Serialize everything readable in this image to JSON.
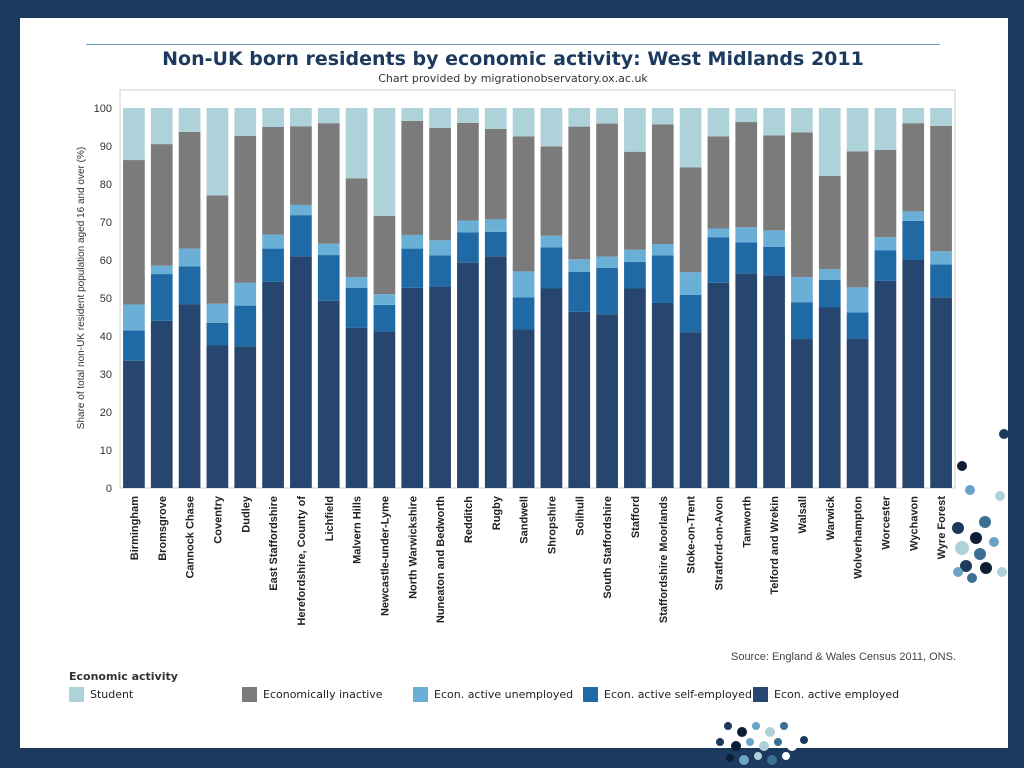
{
  "header": {
    "title": "Non-UK born residents by economic activity: West Midlands 2011",
    "subtitle": "Chart provided by migrationobservatory.ox.ac.uk"
  },
  "footer": {
    "source": "Source: England & Wales Census 2011, ONS.",
    "legend_title": "Economic activity"
  },
  "colors": {
    "background": "#1c3a5e",
    "student": "#aed2da",
    "inactive": "#7b7b7b",
    "unemployed": "#6aafd6",
    "self_employed": "#1f6aa5",
    "employed": "#26466f"
  },
  "chart_data": {
    "type": "bar",
    "stacked": true,
    "title": "Non-UK born residents by economic activity: West Midlands 2011",
    "subtitle": "Chart provided by migrationobservatory.ox.ac.uk",
    "ylabel": "Share of total non-UK resident population aged 16 and over (%)",
    "xlabel": "",
    "ylim": [
      0,
      100
    ],
    "yticks": [
      0,
      10,
      20,
      30,
      40,
      50,
      60,
      70,
      80,
      90,
      100
    ],
    "grid": false,
    "legend_position": "bottom",
    "categories": [
      "Birmingham",
      "Bromsgrove",
      "Cannock Chase",
      "Coventry",
      "Dudley",
      "East Staffordshire",
      "Herefordshire, County of",
      "Lichfield",
      "Malvern Hills",
      "Newcastle-under-Lyme",
      "North Warwickshire",
      "Nuneaton and Bedworth",
      "Redditch",
      "Rugby",
      "Sandwell",
      "Shropshire",
      "Solihull",
      "South Staffordshire",
      "Stafford",
      "Staffordshire Moorlands",
      "Stoke-on-Trent",
      "Stratford-on-Avon",
      "Tamworth",
      "Telford and Wrekin",
      "Walsall",
      "Warwick",
      "Wolverhampton",
      "Worcester",
      "Wychavon",
      "Wyre Forest"
    ],
    "series": [
      {
        "name": "Econ. active employed",
        "color_key": "employed",
        "values": [
          33.5,
          44,
          48.3,
          37.5,
          37.3,
          54.3,
          61,
          49.3,
          42.2,
          41.2,
          52.7,
          53,
          59.3,
          61,
          41.7,
          52.5,
          46.4,
          45.7,
          52.5,
          48.7,
          41,
          54,
          56.5,
          55.9,
          39.2,
          47.5,
          39.4,
          54.5,
          60,
          50.2
        ]
      },
      {
        "name": "Econ. active self-employed",
        "color_key": "self_employed",
        "values": [
          8,
          12.3,
          10,
          6,
          10.7,
          8.7,
          10.8,
          12,
          10.5,
          7,
          10.3,
          8.2,
          8,
          6.4,
          8.5,
          10.8,
          10.5,
          12.2,
          7,
          12.5,
          9.8,
          12,
          8.1,
          7.6,
          9.7,
          7.3,
          6.8,
          8,
          10.3,
          8.6
        ]
      },
      {
        "name": "Econ. active unemployed",
        "color_key": "unemployed",
        "values": [
          6.8,
          2.2,
          4.7,
          5,
          6,
          3.7,
          2.7,
          3,
          2.8,
          2.8,
          3.6,
          4,
          3.1,
          3.3,
          6.8,
          3.1,
          3.3,
          3,
          3.2,
          3,
          6,
          2.3,
          4,
          4.3,
          6.6,
          2.8,
          6.6,
          3.5,
          2.5,
          3.5
        ]
      },
      {
        "name": "Economically inactive",
        "color_key": "inactive",
        "values": [
          38,
          32,
          30.7,
          28.5,
          38.7,
          28.3,
          20.7,
          31.7,
          26,
          20.6,
          30,
          29.6,
          25.7,
          23.8,
          35.5,
          23.5,
          34.9,
          35,
          25.8,
          31.5,
          27.6,
          24.2,
          27.7,
          25,
          38.1,
          24.5,
          35.8,
          23,
          23.2,
          33
        ]
      },
      {
        "name": "Student",
        "color_key": "student",
        "values": [
          13.7,
          9.5,
          6.3,
          23,
          7.3,
          5,
          4.8,
          4,
          18.5,
          28.4,
          3.4,
          5.2,
          3.9,
          5.5,
          7.5,
          10.1,
          4.9,
          4.1,
          11.5,
          4.3,
          15.6,
          7.5,
          3.7,
          7.2,
          6.4,
          17.9,
          11.4,
          11,
          4,
          4.7
        ]
      }
    ]
  },
  "legend": [
    {
      "label": "Student",
      "color_key": "student"
    },
    {
      "label": "Economically inactive",
      "color_key": "inactive"
    },
    {
      "label": "Econ. active unemployed",
      "color_key": "unemployed"
    },
    {
      "label": "Econ. active self-employed",
      "color_key": "self_employed"
    },
    {
      "label": "Econ. active employed",
      "color_key": "employed"
    }
  ]
}
